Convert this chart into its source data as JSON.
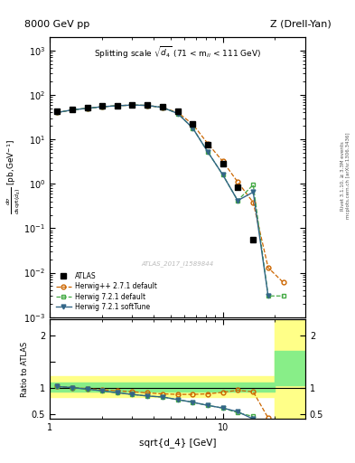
{
  "title_left": "8000 GeV pp",
  "title_right": "Z (Drell-Yan)",
  "plot_title": "Splitting scale $\\sqrt{d_4}$ (71 < m$_{ll}$ < 111 GeV)",
  "watermark": "ATLAS_2017_I1589844",
  "right_label": "mcplots.cern.ch [arXiv:1306.3436]",
  "right_label2": "Rivet 3.1.10, ≥ 3.3M events",
  "x_data": [
    1.1,
    1.35,
    1.65,
    2.0,
    2.45,
    3.0,
    3.65,
    4.5,
    5.5,
    6.7,
    8.2,
    10.0,
    12.2,
    15.0,
    18.3,
    22.4
  ],
  "atlas_y": [
    42,
    48,
    52,
    56,
    58,
    60,
    59,
    54,
    42,
    22,
    7.5,
    2.8,
    0.85,
    0.055,
    null,
    null
  ],
  "atlas_yerr": [
    2,
    2,
    2,
    2,
    2,
    2,
    2,
    2,
    2,
    1.5,
    0.8,
    0.25,
    0.07,
    0.007,
    null,
    null
  ],
  "hpp_y": [
    40,
    46,
    50,
    54,
    57,
    59,
    58,
    52,
    40,
    22,
    8.0,
    3.2,
    1.1,
    0.38,
    0.013,
    0.006
  ],
  "h721d_y": [
    40,
    46,
    50,
    54,
    57,
    59,
    58,
    52,
    38,
    18,
    5.2,
    1.6,
    0.42,
    0.95,
    0.003,
    0.003
  ],
  "h721s_y": [
    40,
    46,
    50,
    54,
    57,
    59,
    58,
    52,
    38,
    18,
    5.2,
    1.6,
    0.42,
    0.65,
    0.003,
    null
  ],
  "ratio_hpp": [
    1.02,
    1.0,
    0.98,
    0.96,
    0.94,
    0.92,
    0.9,
    0.88,
    0.87,
    0.87,
    0.88,
    0.91,
    0.95,
    0.92,
    0.42,
    null
  ],
  "ratio_h721d": [
    1.02,
    1.0,
    0.97,
    0.94,
    0.9,
    0.87,
    0.84,
    0.82,
    0.77,
    0.72,
    0.66,
    0.61,
    0.52,
    0.45,
    null,
    null
  ],
  "ratio_h721s": [
    1.02,
    1.0,
    0.97,
    0.94,
    0.9,
    0.87,
    0.84,
    0.82,
    0.77,
    0.72,
    0.66,
    0.61,
    0.54,
    0.4,
    null,
    null
  ],
  "color_atlas": "#111111",
  "color_hpp": "#cc6600",
  "color_h721d": "#44aa44",
  "color_h721s": "#336688",
  "xlim": [
    1.0,
    30.0
  ],
  "ylim_main": [
    0.001,
    2000.0
  ],
  "ylim_ratio": [
    0.4,
    2.3
  ],
  "band1_xlo": 1.0,
  "band1_xhi": 20.0,
  "band_yellow_ylo": 0.82,
  "band_yellow_yhi": 1.22,
  "band_green_ylo": 0.92,
  "band_green_yhi": 1.1,
  "band2_xlo": 20.0,
  "band2_xhi": 30.0,
  "band2_yellow_ylo": 0.4,
  "band2_yellow_yhi": 2.3,
  "band2_green_ylo": 1.05,
  "band2_green_yhi": 1.7
}
